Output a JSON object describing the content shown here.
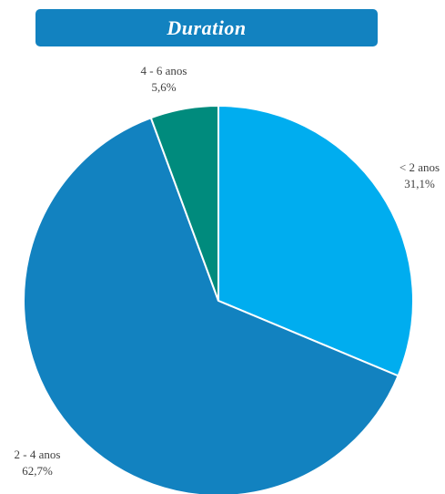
{
  "chart_data": {
    "type": "pie",
    "title": "Duration",
    "slices": [
      {
        "label": "< 2 anos",
        "value": 31.1,
        "value_label": "31,1%",
        "color": "#00adef"
      },
      {
        "label": "2 - 4 anos",
        "value": 62.7,
        "value_label": "62,7%",
        "color": "#1282c0"
      },
      {
        "label": "4 - 6 anos",
        "value": 5.6,
        "value_label": "5,6%",
        "color": "#008b7d"
      }
    ],
    "start_angle": "12 o'clock",
    "direction": "clockwise",
    "slice_border_color": "#ffffff",
    "legend": "none",
    "data_labels": "outside"
  }
}
